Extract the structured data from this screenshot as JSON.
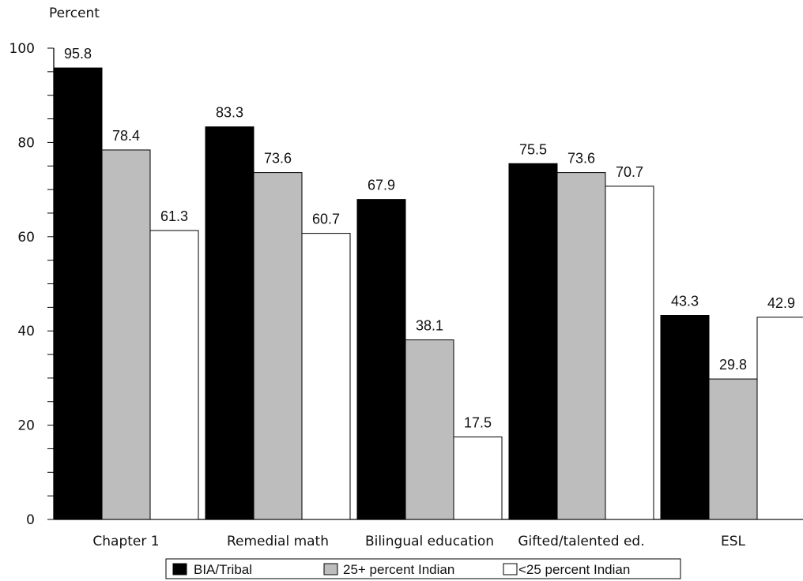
{
  "chart_data": {
    "type": "bar",
    "ylabel": "Percent",
    "ylim": [
      0,
      100
    ],
    "yticks": [
      0,
      20,
      40,
      60,
      80,
      100
    ],
    "grid": false,
    "legend_position": "bottom",
    "categories": [
      "Chapter 1",
      "Remedial math",
      "Bilingual education",
      "Gifted/talented ed.",
      "ESL"
    ],
    "series": [
      {
        "name": "BIA/Tribal",
        "color": "#000000",
        "values": [
          95.8,
          83.3,
          67.9,
          75.5,
          43.3
        ]
      },
      {
        "name": "25+ percent Indian",
        "color": "#bdbdbd",
        "values": [
          78.4,
          73.6,
          38.1,
          73.6,
          29.8
        ]
      },
      {
        "name": "<25 percent Indian",
        "color": "#ffffff",
        "values": [
          61.3,
          60.7,
          17.5,
          70.7,
          42.9
        ]
      }
    ]
  }
}
